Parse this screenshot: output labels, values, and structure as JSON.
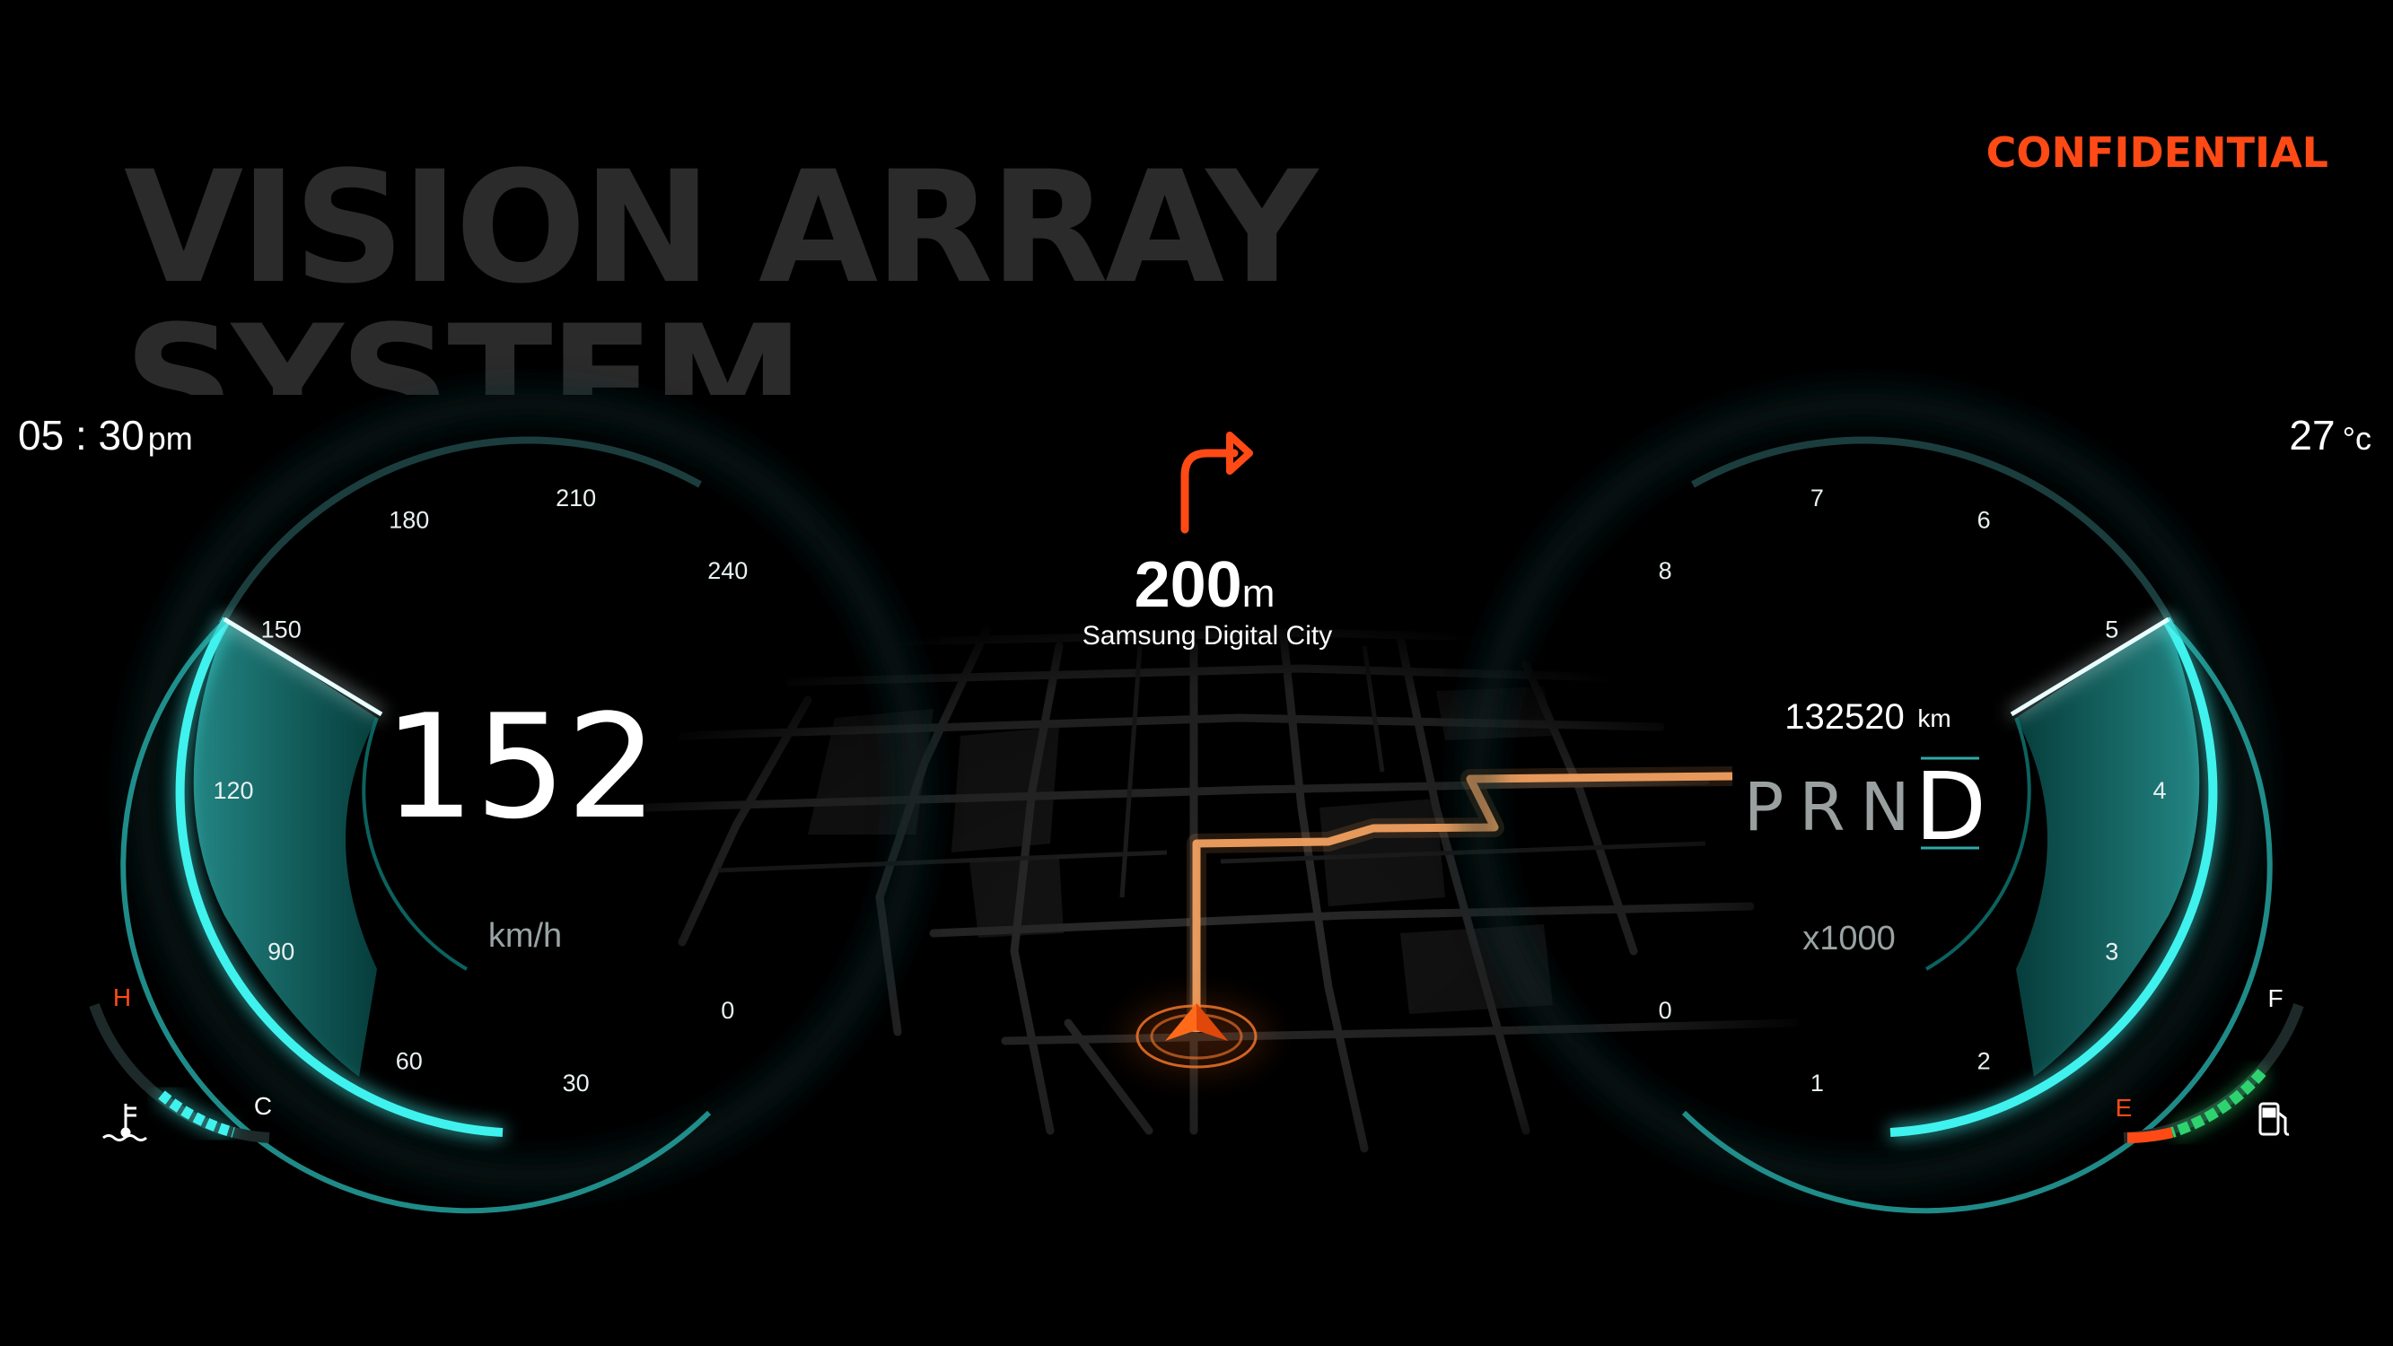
{
  "headline": {
    "line1": "VISION ARRAY",
    "line2": "SYSTEM"
  },
  "badge": {
    "label": "CONFIDENTIAL"
  },
  "status": {
    "time": "05 : 30",
    "ampm": "pm",
    "temperature": "27",
    "temp_unit": "°c"
  },
  "speedometer": {
    "value": "152",
    "unit": "km/h",
    "ticks": [
      "0",
      "30",
      "60",
      "90",
      "120",
      "150",
      "180",
      "210",
      "240"
    ],
    "min": 0,
    "max": 240,
    "current": 152
  },
  "temp_gauge": {
    "hot_label": "H",
    "cold_label": "C",
    "icon": "coolant-temperature-icon"
  },
  "navigation": {
    "turn_icon": "turn-right-arrow-icon",
    "distance": "200",
    "distance_unit": "m",
    "street": "Samsung Digital City"
  },
  "tachometer": {
    "odometer": "132520",
    "odometer_unit": "km",
    "unit": "x1000",
    "ticks": [
      "0",
      "1",
      "2",
      "3",
      "4",
      "5",
      "6",
      "7",
      "8"
    ],
    "min": 0,
    "max": 8,
    "current": 5
  },
  "gear": {
    "options": [
      "P",
      "R",
      "N"
    ],
    "active": "D"
  },
  "fuel_gauge": {
    "full_label": "F",
    "empty_label": "E",
    "icon": "fuel-pump-icon"
  },
  "colors": {
    "accent": "#1fd3cf",
    "alert": "#ff4a16",
    "route": "#f0a060",
    "fuel": "#2dd36f"
  }
}
